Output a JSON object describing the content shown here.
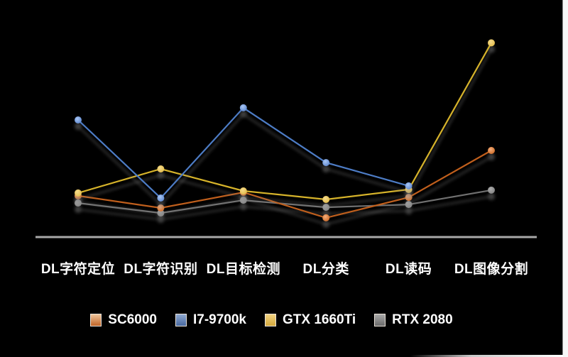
{
  "window": {
    "background": "#000000",
    "text_color": "#FFFFFF",
    "axis_color": "#A8A8A8"
  },
  "chart_data": {
    "type": "line",
    "title": "",
    "xlabel": "",
    "ylabel": "",
    "grid": false,
    "legend_position": "bottom",
    "y_axis_visible": false,
    "value_note": "no y-axis labels shown; values are relative estimates on 0-100 scale",
    "ylim": [
      0,
      100
    ],
    "categories": [
      "DL字符定位",
      "DL字符识别",
      "DL目标检测",
      "DL分类",
      "DL读码",
      "DL图像分割"
    ],
    "series": [
      {
        "name": "SC6000",
        "values": [
          20.4,
          14.4,
          22.1,
          9.5,
          19.6,
          42.8
        ],
        "line_color": "#C05F1E",
        "dot_center": "#F4AE7C",
        "dot_edge": "#CE6B26",
        "swatch_top": "#EFC59C",
        "swatch_bottom": "#BF6426"
      },
      {
        "name": "I7-9700k",
        "values": [
          57.9,
          19.3,
          63.9,
          36.8,
          25.3,
          null
        ],
        "line_color": "#4D7CC5",
        "dot_center": "#A9C7F5",
        "dot_edge": "#5E88CF",
        "swatch_top": "#8FA9D0",
        "swatch_bottom": "#47689F"
      },
      {
        "name": "GTX 1660Ti",
        "values": [
          21.8,
          33.7,
          22.8,
          18.6,
          23.5,
          96.0
        ],
        "line_color": "#D6B32C",
        "dot_center": "#F6DC8D",
        "dot_edge": "#E3BC4B",
        "swatch_top": "#F3D382",
        "swatch_bottom": "#D4A83C"
      },
      {
        "name": "RTX 2080",
        "values": [
          16.8,
          11.9,
          18.2,
          14.7,
          16.1,
          23.2
        ],
        "line_color": "#6F6F6F",
        "dot_center": "#ADADAD",
        "dot_edge": "#828282",
        "swatch_top": "#A9A9A9",
        "swatch_bottom": "#6A6A6A"
      }
    ]
  },
  "legend": {
    "items": [
      "SC6000",
      "I7-9700k",
      "GTX 1660Ti",
      "RTX 2080"
    ]
  }
}
